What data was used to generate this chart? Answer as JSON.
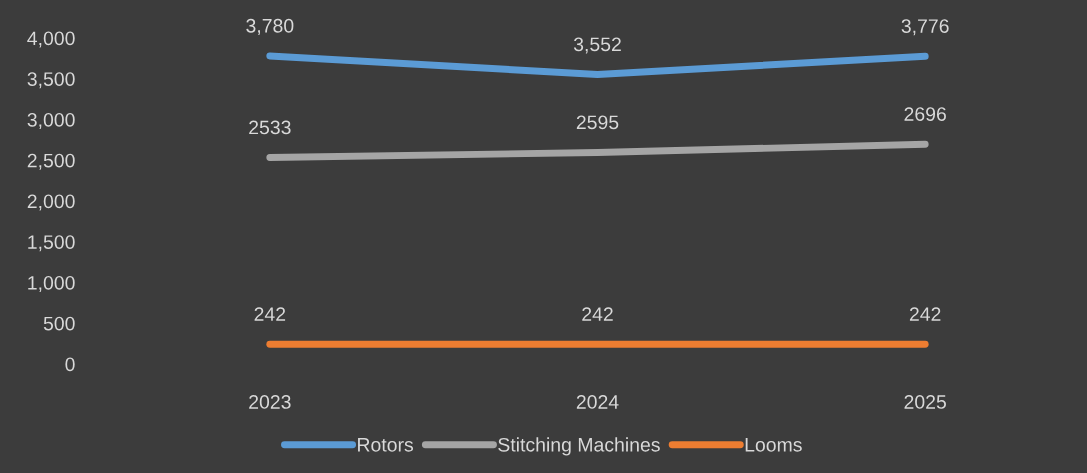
{
  "chart_data": {
    "type": "line",
    "categories": [
      "2023",
      "2024",
      "2025"
    ],
    "series": [
      {
        "name": "Rotors",
        "color": "#5b9bd5",
        "values": [
          3780,
          3552,
          3776
        ],
        "value_labels": [
          "3,780",
          "3,552",
          "3,776"
        ]
      },
      {
        "name": "Stitching Machines",
        "color": "#a5a5a5",
        "values": [
          2533,
          2595,
          2696
        ],
        "value_labels": [
          "2533",
          "2595",
          "2696"
        ]
      },
      {
        "name": "Looms",
        "color": "#ed7d31",
        "values": [
          242,
          242,
          242
        ],
        "value_labels": [
          "242",
          "242",
          "242"
        ]
      }
    ],
    "ylim": [
      0,
      4000
    ],
    "yticks": [
      0,
      {
        "value": 500,
        "label": "500"
      },
      {
        "value": 1000,
        "label": "1,000"
      },
      {
        "value": 1500,
        "label": "1,500"
      },
      {
        "value": 2000,
        "label": "2,000"
      },
      {
        "value": 2500,
        "label": "2,500"
      },
      {
        "value": 3000,
        "label": "3,000"
      },
      {
        "value": 3500,
        "label": "3,500"
      },
      {
        "value": 4000,
        "label": "4,000"
      }
    ],
    "grid": false,
    "legend": "bottom",
    "marker": "none",
    "line_style": "solid"
  }
}
